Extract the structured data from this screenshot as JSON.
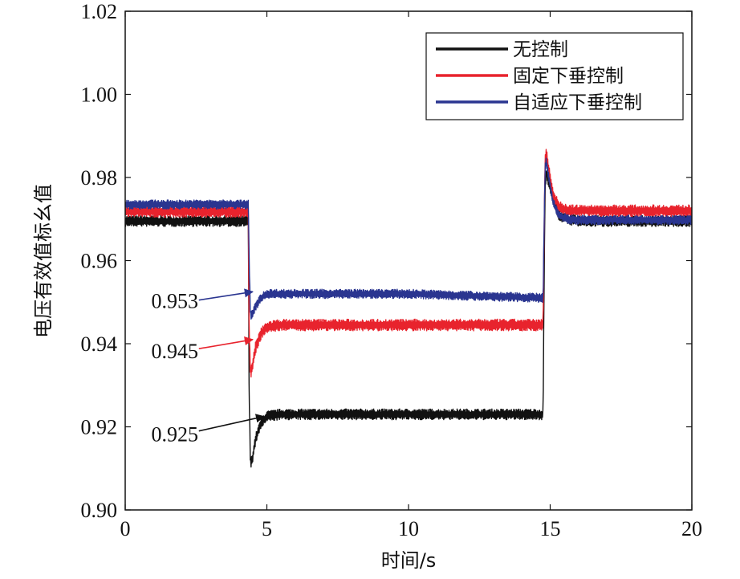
{
  "chart_data": {
    "type": "line",
    "xlabel": "时间/s",
    "ylabel": "电压有效值标幺值",
    "xlim": [
      0,
      20
    ],
    "ylim": [
      0.9,
      1.02
    ],
    "x_ticks": [
      0,
      5,
      10,
      15,
      20
    ],
    "x_tick_labels": [
      "0",
      "5",
      "10",
      "15",
      "20"
    ],
    "y_ticks": [
      0.9,
      0.92,
      0.94,
      0.96,
      0.98,
      1.0,
      1.02
    ],
    "y_tick_labels": [
      "0.90",
      "0.92",
      "0.94",
      "0.96",
      "0.98",
      "1.00",
      "1.02"
    ],
    "grid": false,
    "legend_position": "top-right",
    "series": [
      {
        "name": "无控制",
        "color": "#111111",
        "noise": 0.0013,
        "x": [
          0,
          4.35,
          4.37,
          4.42,
          4.48,
          4.6,
          4.8,
          5.0,
          5.5,
          10,
          14.75,
          14.78,
          14.82,
          14.86,
          14.95,
          15.1,
          15.3,
          15.6,
          16,
          20
        ],
        "y": [
          0.9695,
          0.9695,
          0.93,
          0.911,
          0.912,
          0.917,
          0.921,
          0.9225,
          0.923,
          0.923,
          0.923,
          0.95,
          0.978,
          0.981,
          0.979,
          0.975,
          0.971,
          0.97,
          0.9695,
          0.9695
        ]
      },
      {
        "name": "固定下垂控制",
        "color": "#e8232d",
        "noise": 0.0014,
        "x": [
          0,
          4.35,
          4.37,
          4.42,
          4.48,
          4.6,
          4.8,
          5.0,
          5.5,
          10,
          14.75,
          14.78,
          14.82,
          14.86,
          14.95,
          15.1,
          15.3,
          15.6,
          16,
          20
        ],
        "y": [
          0.9718,
          0.9718,
          0.945,
          0.933,
          0.934,
          0.939,
          0.9425,
          0.944,
          0.9445,
          0.9445,
          0.9445,
          0.965,
          0.984,
          0.986,
          0.982,
          0.976,
          0.973,
          0.972,
          0.972,
          0.972
        ]
      },
      {
        "name": "自适应下垂控制",
        "color": "#2a3590",
        "noise": 0.0011,
        "x": [
          0,
          4.35,
          4.37,
          4.42,
          4.48,
          4.6,
          4.8,
          5.0,
          5.5,
          10,
          14.75,
          14.78,
          14.82,
          14.86,
          14.95,
          15.1,
          15.3,
          15.6,
          16,
          20
        ],
        "y": [
          0.9735,
          0.9735,
          0.962,
          0.9465,
          0.947,
          0.949,
          0.951,
          0.952,
          0.952,
          0.952,
          0.951,
          0.966,
          0.982,
          0.984,
          0.98,
          0.974,
          0.971,
          0.97,
          0.9698,
          0.9698
        ]
      }
    ],
    "annotations": [
      {
        "text": "0.953",
        "color": "#2a3590",
        "text_x": 1.75,
        "text_y": 0.9505,
        "arrow_from": [
          2.6,
          0.9505
        ],
        "arrow_to": [
          4.5,
          0.9525
        ]
      },
      {
        "text": "0.945",
        "color": "#e8232d",
        "text_x": 1.75,
        "text_y": 0.9385,
        "arrow_from": [
          2.6,
          0.9388
        ],
        "arrow_to": [
          4.5,
          0.941
        ]
      },
      {
        "text": "0.925",
        "color": "#111111",
        "text_x": 1.75,
        "text_y": 0.9185,
        "arrow_from": [
          2.6,
          0.919
        ],
        "arrow_to": [
          4.9,
          0.9225
        ]
      }
    ]
  }
}
